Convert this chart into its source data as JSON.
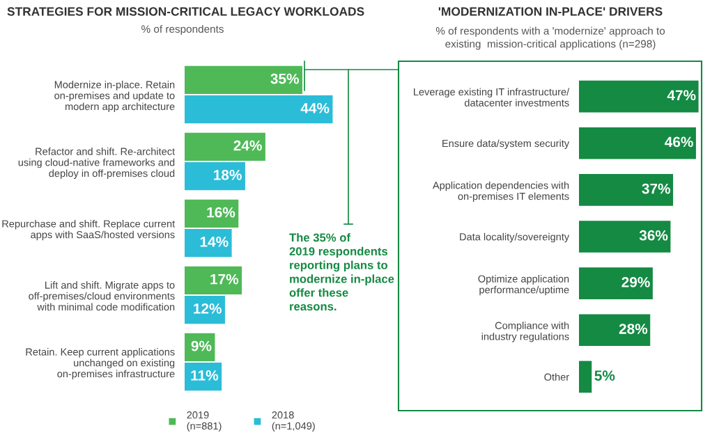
{
  "chart_data": [
    {
      "type": "bar",
      "orientation": "horizontal",
      "title": "STRATEGIES FOR MISSION-CRITICAL LEGACY WORKLOADS",
      "subtitle": "% of respondents",
      "categories": [
        "Modernize in-place. Retain\non-premises and update to\nmodern app architecture",
        "Refactor and shift. Re-architect\nusing cloud-native frameworks and\ndeploy in off-premises cloud",
        "Repurchase and shift. Replace current\napps with SaaS/hosted versions",
        "Lift and shift. Migrate apps to\noff-premises/cloud environments\nwith minimal code modification",
        "Retain. Keep current applications\nunchanged on existing\non-premises infrastructure"
      ],
      "series": [
        {
          "name": "2019\n(n=881)",
          "color": "#4fb957",
          "values": [
            35,
            24,
            16,
            17,
            9
          ],
          "value_labels": [
            "35%",
            "24%",
            "16%",
            "17%",
            "9%"
          ]
        },
        {
          "name": "2018\n(n=1,049)",
          "color": "#2bbcd8",
          "values": [
            44,
            18,
            14,
            12,
            11
          ],
          "value_labels": [
            "44%",
            "18%",
            "14%",
            "12%",
            "11%"
          ]
        }
      ],
      "legend": "bottom",
      "tick_labels": "y",
      "grid": false,
      "annotations": [
        "The 35% of\n2019 respondents\nreporting plans to\nmodernize in-place\noffer these\nreasons."
      ]
    },
    {
      "type": "bar",
      "orientation": "horizontal",
      "title": "'MODERNIZATION IN-PLACE' DRIVERS",
      "subtitle": "% of respondents with a 'modernize' approach to\nexisting  mission-critical applications (n=298)",
      "categories": [
        "Leverage existing IT infrastructure/\ndatacenter investments",
        "Ensure data/system security",
        "Application dependencies with\non-premises IT elements",
        "Data locality/sovereignty",
        "Optimize application\nperformance/uptime",
        "Compliance with\nindustry regulations",
        "Other"
      ],
      "values": [
        47,
        46,
        37,
        36,
        29,
        28,
        5
      ],
      "value_labels": [
        "47%",
        "46%",
        "37%",
        "36%",
        "29%",
        "28%",
        "5%"
      ],
      "color": "#148a43",
      "tick_labels": "y",
      "grid": false
    }
  ]
}
